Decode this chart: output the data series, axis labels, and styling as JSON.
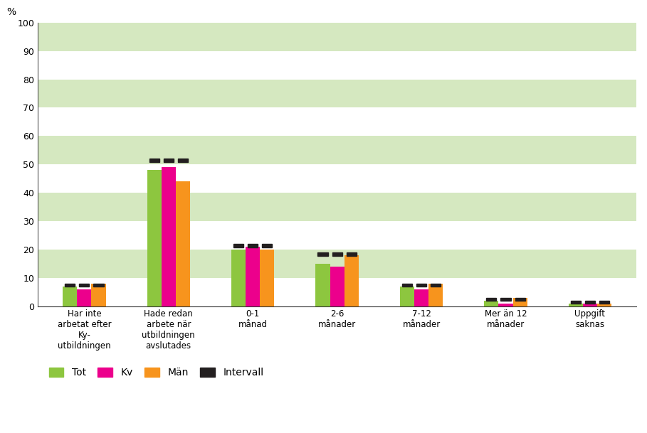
{
  "categories": [
    "Har inte\narbetat efter\nKy-\nutbildningen",
    "Hade redan\narbete när\nutbildningen\navslutades",
    "0-1\nmånad",
    "2-6\nmånader",
    "7-12\nmånader",
    "Mer än 12\nmånader",
    "Uppgift\nsaknas"
  ],
  "series": {
    "Tot": [
      7,
      48,
      20,
      15,
      7,
      2,
      1
    ],
    "Kv": [
      6,
      49,
      21,
      14,
      6,
      1,
      1
    ],
    "Män": [
      8,
      44,
      20,
      18,
      8,
      3,
      1
    ]
  },
  "interval_tops": [
    8,
    52,
    22,
    19,
    8,
    3,
    2
  ],
  "colors": {
    "Tot": "#8dc63f",
    "Kv": "#ec008c",
    "Män": "#f7941d"
  },
  "interval_color": "#231f20",
  "ylim": [
    0,
    100
  ],
  "yticks": [
    0,
    10,
    20,
    30,
    40,
    50,
    60,
    70,
    80,
    90,
    100
  ],
  "ylabel": "%",
  "bar_width": 0.17,
  "background_color": "#ffffff",
  "grid_color": "#d5e8c0",
  "legend_labels": [
    "Tot",
    "Kv",
    "Män",
    "Intervall"
  ]
}
